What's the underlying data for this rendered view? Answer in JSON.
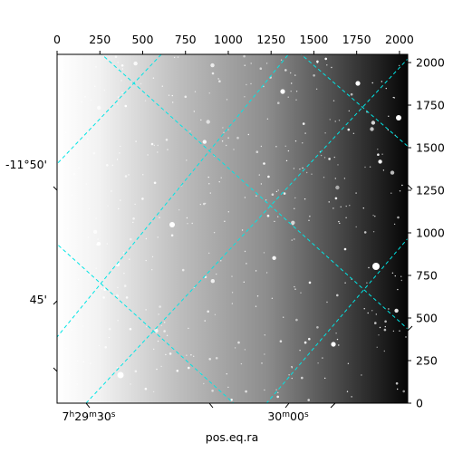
{
  "figure": {
    "type": "astronomical-image-with-wcs-grid",
    "colormap": "gray",
    "grid_color": "#00e5e5",
    "background_gradient": "bright-left-to-dark-right",
    "xlabel": "pos.eq.ra",
    "pixel_axis_x": {
      "range": [
        0,
        2048
      ],
      "ticks": [
        0,
        250,
        500,
        750,
        1000,
        1250,
        1500,
        1750,
        2000
      ],
      "labels": [
        "0",
        "250",
        "500",
        "750",
        "1000",
        "1250",
        "1500",
        "1750",
        "2000"
      ]
    },
    "pixel_axis_y": {
      "range": [
        0,
        2048
      ],
      "ticks": [
        0,
        250,
        500,
        750,
        1000,
        1250,
        1500,
        1750,
        2000
      ],
      "labels": [
        "0",
        "250",
        "500",
        "750",
        "1000",
        "1250",
        "1500",
        "1750",
        "2000"
      ]
    },
    "world_ticks": {
      "ra_labels": [
        {
          "label": "7h29m30s",
          "h": "7",
          "m": "29",
          "s": "30"
        },
        {
          "label": "30m00s",
          "m": "30",
          "s": "00"
        }
      ],
      "dec_labels": [
        "-11°50'",
        "45'"
      ]
    }
  }
}
